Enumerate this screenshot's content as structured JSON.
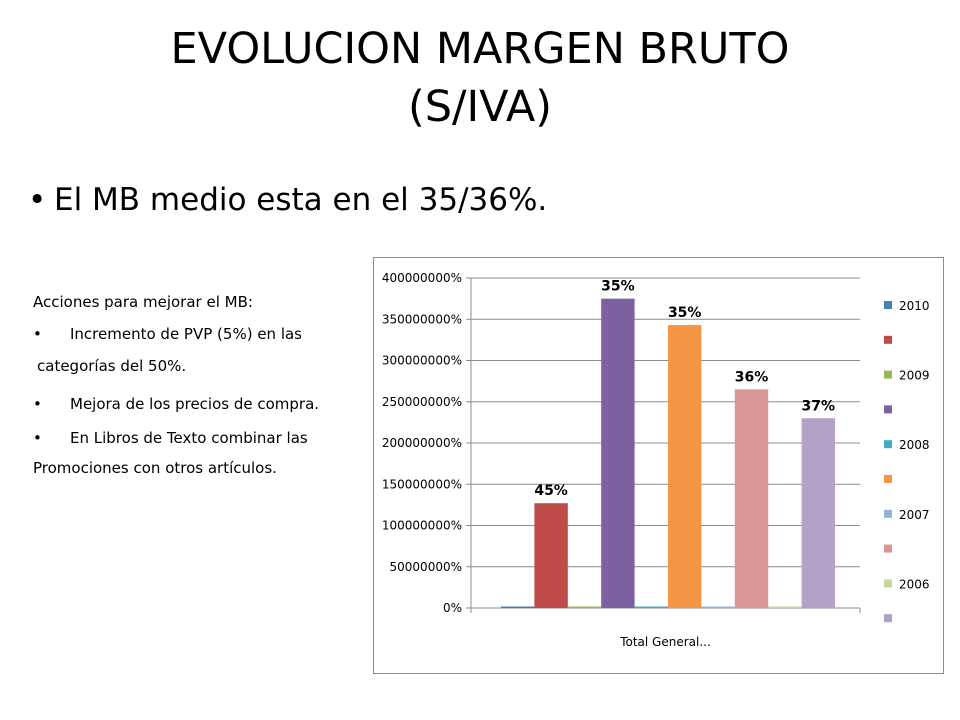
{
  "slide": {
    "title_line1": "EVOLUCION MARGEN BRUTO",
    "title_line2": "(S/IVA)",
    "bullet_main": "El MB medio esta en el 35/36%.",
    "notes": {
      "heading": "Acciones para mejorar el MB:",
      "item1_part1": "Incremento de PVP (5%) en las",
      "item1_part2": "categorías del 50%.",
      "item2": "Mejora de los precios de compra.",
      "item3_part1": "En Libros de Texto combinar las",
      "item3_part2": "Promociones con otros artículos."
    }
  },
  "chart_data": {
    "type": "bar",
    "categories": [
      "Total General..."
    ],
    "xlabel": "Total General...",
    "ylabel": "",
    "ylim": [
      0,
      4000000
    ],
    "ytick_step": 500000,
    "y_tick_format": "percent",
    "grid": true,
    "legend_position": "right",
    "series": [
      {
        "name": "2010",
        "values": [
          0
        ],
        "color": "#4a7ebb",
        "data_label": ""
      },
      {
        "name": "",
        "values": [
          1270000
        ],
        "color": "#be4b48",
        "data_label": "45%"
      },
      {
        "name": "2009",
        "values": [
          0
        ],
        "color": "#98b954",
        "data_label": ""
      },
      {
        "name": "",
        "values": [
          3750000
        ],
        "color": "#7d60a0",
        "data_label": "35%"
      },
      {
        "name": "2008",
        "values": [
          0
        ],
        "color": "#46aac5",
        "data_label": ""
      },
      {
        "name": "",
        "values": [
          3430000
        ],
        "color": "#f69546",
        "data_label": "35%"
      },
      {
        "name": "2007",
        "values": [
          0
        ],
        "color": "#95b3d7",
        "data_label": ""
      },
      {
        "name": "",
        "values": [
          2650000
        ],
        "color": "#d99694",
        "data_label": "36%"
      },
      {
        "name": "2006",
        "values": [
          0
        ],
        "color": "#c3d69b",
        "data_label": ""
      },
      {
        "name": "",
        "values": [
          2300000
        ],
        "color": "#b3a2c7",
        "data_label": "37%"
      }
    ]
  }
}
